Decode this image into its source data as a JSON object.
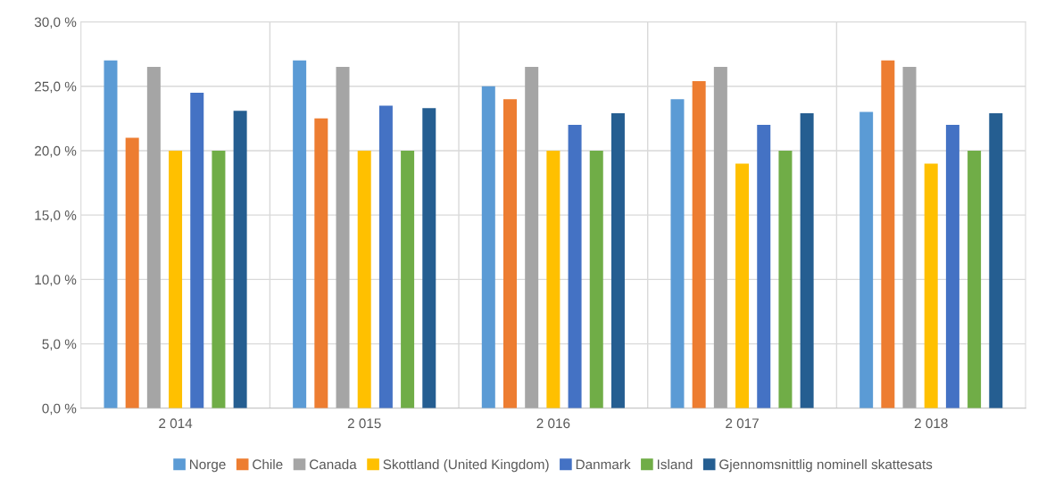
{
  "chart_data": {
    "type": "bar",
    "categories": [
      "2 014",
      "2 015",
      "2 016",
      "2 017",
      "2 018"
    ],
    "series": [
      {
        "name": "Norge",
        "color": "#5b9bd5",
        "values": [
          27,
          27,
          25,
          24,
          23
        ]
      },
      {
        "name": "Chile",
        "color": "#ed7d31",
        "values": [
          21,
          22.5,
          24,
          25.4,
          27
        ]
      },
      {
        "name": "Canada",
        "color": "#a5a5a5",
        "values": [
          26.5,
          26.5,
          26.5,
          26.5,
          26.5
        ]
      },
      {
        "name": "Skottland (United Kingdom)",
        "color": "#ffc000",
        "values": [
          20,
          20,
          20,
          19,
          19
        ]
      },
      {
        "name": "Danmark",
        "color": "#4472c4",
        "values": [
          24.5,
          23.5,
          22,
          22,
          22
        ]
      },
      {
        "name": "Island",
        "color": "#70ad47",
        "values": [
          20,
          20,
          20,
          20,
          20
        ]
      },
      {
        "name": "Gjennomsnittlig nominell skattesats",
        "color": "#255e91",
        "values": [
          23.1,
          23.3,
          22.9,
          22.9,
          22.9
        ]
      }
    ],
    "ylim": [
      0,
      30
    ],
    "yticks": [
      {
        "value": 0,
        "label": "0,0 %"
      },
      {
        "value": 5,
        "label": "5,0 %"
      },
      {
        "value": 10,
        "label": "10,0 %"
      },
      {
        "value": 15,
        "label": "15,0 %"
      },
      {
        "value": 20,
        "label": "20,0 %"
      },
      {
        "value": 25,
        "label": "25,0 %"
      },
      {
        "value": 30,
        "label": "30,0 %"
      }
    ],
    "grid": true,
    "legend": "bottom"
  }
}
